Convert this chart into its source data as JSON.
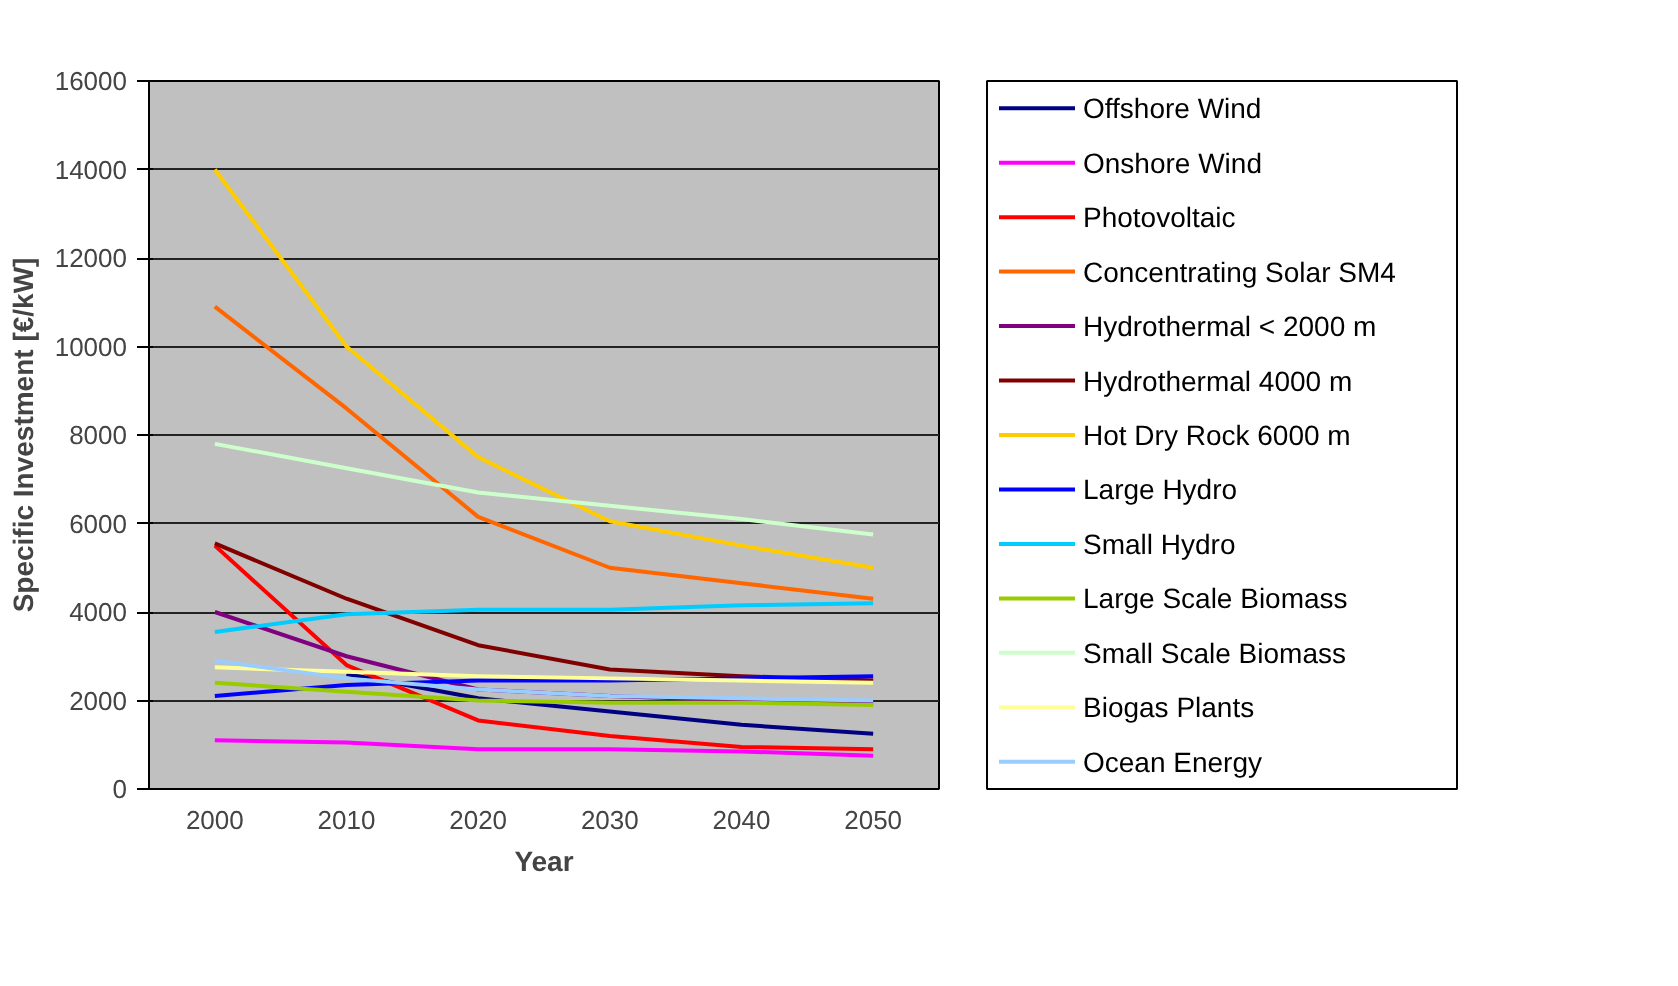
{
  "chart_data": {
    "type": "line",
    "xlabel": "Year",
    "ylabel": "Specific Investment [€/kW]",
    "categories": [
      "2000",
      "2010",
      "2020",
      "2030",
      "2040",
      "2050"
    ],
    "ylim": [
      0,
      16000
    ],
    "yticks": [
      0,
      2000,
      4000,
      6000,
      8000,
      10000,
      12000,
      14000,
      16000
    ],
    "grid": "y",
    "legend": "right",
    "marker": "none",
    "line_style": "solid",
    "series": [
      {
        "name": "Offshore Wind",
        "color": "#000080",
        "values": [
          null,
          2600,
          2050,
          1750,
          1450,
          1250
        ]
      },
      {
        "name": "Onshore Wind",
        "color": "#ff00ff",
        "values": [
          1100,
          1050,
          900,
          900,
          850,
          750
        ]
      },
      {
        "name": "Photovoltaic",
        "color": "#ff0000",
        "values": [
          5500,
          2800,
          1550,
          1200,
          950,
          900
        ]
      },
      {
        "name": "Concentrating Solar SM4",
        "color": "#ff6600",
        "values": [
          10900,
          8600,
          6150,
          5000,
          4650,
          4300
        ]
      },
      {
        "name": "Hydrothermal < 2000 m",
        "color": "#800080",
        "values": [
          4000,
          3000,
          2250,
          2100,
          2000,
          1950
        ]
      },
      {
        "name": "Hydrothermal 4000 m",
        "color": "#800000",
        "values": [
          5550,
          4300,
          3250,
          2700,
          2550,
          2450
        ]
      },
      {
        "name": "Hot Dry Rock 6000 m",
        "color": "#ffcc00",
        "values": [
          14000,
          10000,
          7500,
          6050,
          5500,
          5000
        ]
      },
      {
        "name": "Large Hydro",
        "color": "#0000ff",
        "values": [
          2100,
          2350,
          2450,
          2450,
          2500,
          2550
        ]
      },
      {
        "name": "Small Hydro",
        "color": "#00ccff",
        "values": [
          3550,
          3950,
          4050,
          4050,
          4150,
          4200
        ]
      },
      {
        "name": "Large Scale Biomass",
        "color": "#99cc00",
        "values": [
          2400,
          2200,
          2000,
          1950,
          1950,
          1900
        ]
      },
      {
        "name": "Small Scale Biomass",
        "color": "#ccffcc",
        "values": [
          7800,
          7250,
          6700,
          6400,
          6100,
          5750
        ]
      },
      {
        "name": "Biogas Plants",
        "color": "#ffff99",
        "values": [
          2750,
          2650,
          2550,
          2500,
          2450,
          2400
        ]
      },
      {
        "name": "Ocean Energy",
        "color": "#99ccff",
        "values": [
          2900,
          2500,
          2250,
          2100,
          2050,
          2000
        ]
      }
    ]
  }
}
